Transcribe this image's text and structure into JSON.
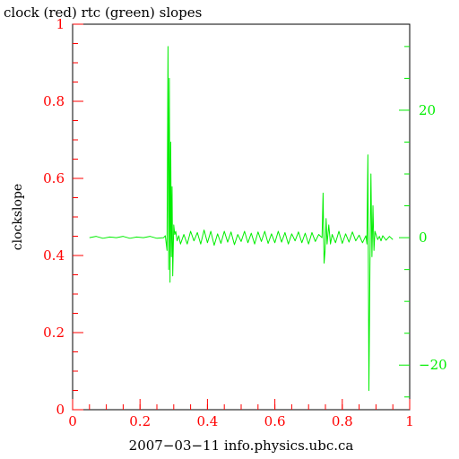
{
  "chart_data": {
    "type": "line",
    "title": "clock (red) rtc (green) slopes",
    "xlabel": "2007−03−11 info.physics.ubc.ca",
    "ylabel": "clockslope",
    "xlim": [
      0,
      1
    ],
    "ylim_left": [
      0,
      1
    ],
    "ylim_right": [
      -27,
      33.5
    ],
    "grid": false,
    "x_ticks": [
      {
        "value": 0,
        "label": "0"
      },
      {
        "value": 0.2,
        "label": "0.2"
      },
      {
        "value": 0.4,
        "label": "0.4"
      },
      {
        "value": 0.6,
        "label": "0.6"
      },
      {
        "value": 0.8,
        "label": "0.8"
      },
      {
        "value": 1,
        "label": "1"
      }
    ],
    "y_left_ticks": [
      {
        "value": 0,
        "label": "0"
      },
      {
        "value": 0.2,
        "label": "0.2"
      },
      {
        "value": 0.4,
        "label": "0.4"
      },
      {
        "value": 0.6,
        "label": "0.6"
      },
      {
        "value": 0.8,
        "label": "0.8"
      },
      {
        "value": 1,
        "label": "1"
      }
    ],
    "y_right_ticks": [
      {
        "value": -20,
        "label": "−20"
      },
      {
        "value": 0,
        "label": "0"
      },
      {
        "value": 20,
        "label": "20"
      }
    ],
    "series": [
      {
        "name": "rtc",
        "axis": "right",
        "color": "#00ee00",
        "x": [
          0.05,
          0.07,
          0.09,
          0.11,
          0.13,
          0.15,
          0.17,
          0.19,
          0.21,
          0.23,
          0.25,
          0.27,
          0.275,
          0.28,
          0.283,
          0.285,
          0.287,
          0.289,
          0.291,
          0.293,
          0.295,
          0.297,
          0.3,
          0.303,
          0.306,
          0.31,
          0.315,
          0.32,
          0.33,
          0.34,
          0.35,
          0.36,
          0.37,
          0.38,
          0.39,
          0.4,
          0.41,
          0.42,
          0.43,
          0.44,
          0.45,
          0.46,
          0.47,
          0.48,
          0.49,
          0.5,
          0.51,
          0.52,
          0.53,
          0.54,
          0.55,
          0.56,
          0.57,
          0.58,
          0.59,
          0.6,
          0.61,
          0.62,
          0.63,
          0.64,
          0.65,
          0.66,
          0.67,
          0.68,
          0.69,
          0.7,
          0.71,
          0.72,
          0.73,
          0.74,
          0.743,
          0.746,
          0.749,
          0.752,
          0.755,
          0.76,
          0.765,
          0.77,
          0.78,
          0.79,
          0.8,
          0.81,
          0.82,
          0.83,
          0.84,
          0.85,
          0.86,
          0.87,
          0.873,
          0.876,
          0.879,
          0.882,
          0.885,
          0.888,
          0.891,
          0.894,
          0.897,
          0.9,
          0.905,
          0.91,
          0.915,
          0.92,
          0.93,
          0.94,
          0.95
        ],
        "y": [
          0,
          0.2,
          -0.1,
          0.1,
          0,
          0.2,
          -0.1,
          0.1,
          0,
          0.2,
          -0.1,
          0,
          0.3,
          -2,
          30,
          -5,
          25,
          -7,
          15,
          -3,
          8,
          -6,
          2,
          0.5,
          1,
          -0.5,
          0.3,
          -1,
          0.5,
          -1,
          1,
          -0.5,
          0.8,
          -1,
          1.2,
          -0.8,
          1,
          -1.2,
          0.6,
          -0.9,
          1,
          -0.7,
          0.9,
          -1.1,
          0.5,
          -0.6,
          1,
          -0.8,
          0.7,
          -1,
          0.9,
          -0.6,
          1,
          -0.9,
          0.6,
          -0.8,
          1,
          -0.7,
          0.8,
          -1,
          0.6,
          -0.5,
          0.9,
          -0.8,
          0.7,
          -1,
          0.8,
          -0.6,
          0.5,
          0,
          7,
          -4,
          -2,
          3,
          -1,
          2,
          -1,
          0.5,
          -0.8,
          1,
          -0.9,
          0.6,
          -0.7,
          0.9,
          -0.5,
          0.4,
          -0.8,
          0.3,
          -1,
          13,
          -24,
          -5,
          10,
          -3,
          5,
          -2,
          1,
          0.5,
          -0.3,
          0.2,
          -0.5,
          0.3,
          -0.4,
          0.2,
          -0.3
        ]
      }
    ]
  }
}
